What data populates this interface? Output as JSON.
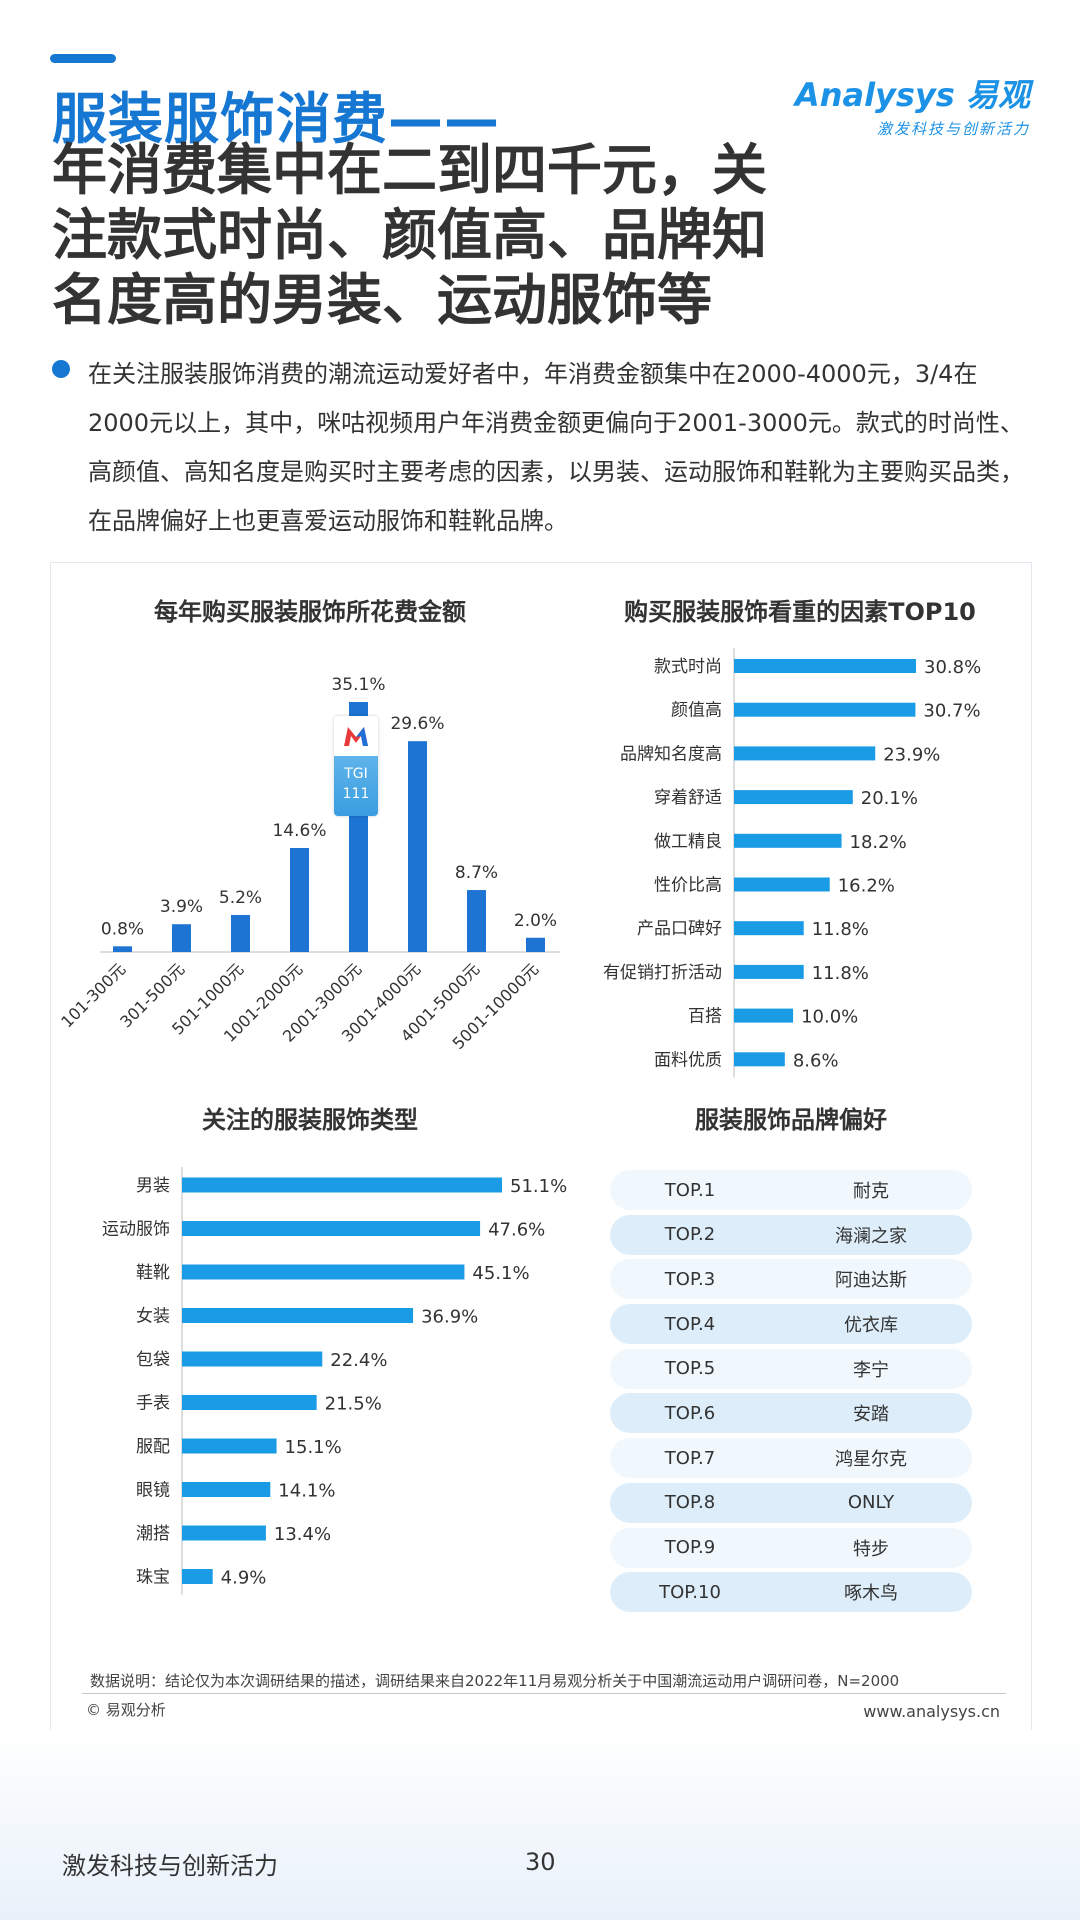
{
  "header": {
    "title_line1": "服装服饰消费——",
    "title_lines": [
      "年消费集中在二到四千元，关",
      "注款式时尚、颜值高、品牌知",
      "名度高的男装、运动服饰等"
    ]
  },
  "logo": {
    "brand": "Analysys 易观",
    "tagline": "激发科技与创新活力"
  },
  "summary": "在关注服装服饰消费的潮流运动爱好者中，年消费金额集中在2000-4000元，3/4在2000元以上，其中，咪咕视频用户年消费金额更偏向于2001-3000元。款式的时尚性、高颜值、高知名度是购买时主要考虑的因素，以男装、运动服饰和鞋靴为主要购买品类，在品牌偏好上也更喜爱运动服饰和鞋靴品牌。",
  "tgi_badge": {
    "label": "TGI",
    "value": "111"
  },
  "chart_data": [
    {
      "type": "bar",
      "title": "每年购买服装服饰所花费金额",
      "categories": [
        "101-300元",
        "301-500元",
        "501-1000元",
        "1001-2000元",
        "2001-3000元",
        "3001-4000元",
        "4001-5000元",
        "5001-10000元"
      ],
      "values": [
        0.8,
        3.9,
        5.2,
        14.6,
        35.1,
        29.6,
        8.7,
        2.0
      ],
      "labels": [
        "0.8%",
        "3.9%",
        "5.2%",
        "14.6%",
        "35.1%",
        "29.6%",
        "8.7%",
        "2.0%"
      ],
      "unit": "%",
      "ylim": [
        0,
        35.1
      ],
      "grid": false,
      "color": "#1d74d2"
    },
    {
      "type": "bar",
      "orientation": "horizontal",
      "title": "购买服装服饰看重的因素TOP10",
      "categories": [
        "款式时尚",
        "颜值高",
        "品牌知名度高",
        "穿着舒适",
        "做工精良",
        "性价比高",
        "产品口碑好",
        "有促销打折活动",
        "百搭",
        "面料优质"
      ],
      "values": [
        30.8,
        30.7,
        23.9,
        20.1,
        18.2,
        16.2,
        11.8,
        11.8,
        10.0,
        8.6
      ],
      "labels": [
        "30.8%",
        "30.7%",
        "23.9%",
        "20.1%",
        "18.2%",
        "16.2%",
        "11.8%",
        "11.8%",
        "10.0%",
        "8.6%"
      ],
      "unit": "%",
      "xlim": [
        0,
        30.8
      ],
      "grid": false,
      "color": "#1a9be6"
    },
    {
      "type": "bar",
      "orientation": "horizontal",
      "title": "关注的服装服饰类型",
      "categories": [
        "男装",
        "运动服饰",
        "鞋靴",
        "女装",
        "包袋",
        "手表",
        "服配",
        "眼镜",
        "潮搭",
        "珠宝"
      ],
      "values": [
        51.1,
        47.6,
        45.1,
        36.9,
        22.4,
        21.5,
        15.1,
        14.1,
        13.4,
        4.9
      ],
      "labels": [
        "51.1%",
        "47.6%",
        "45.1%",
        "36.9%",
        "22.4%",
        "21.5%",
        "15.1%",
        "14.1%",
        "13.4%",
        "4.9%"
      ],
      "unit": "%",
      "xlim": [
        0,
        51.1
      ],
      "grid": false,
      "color": "#1a9be6"
    },
    {
      "type": "table",
      "title": "服装服饰品牌偏好",
      "rows": [
        {
          "rank": "TOP.1",
          "brand": "耐克"
        },
        {
          "rank": "TOP.2",
          "brand": "海澜之家"
        },
        {
          "rank": "TOP.3",
          "brand": "阿迪达斯"
        },
        {
          "rank": "TOP.4",
          "brand": "优衣库"
        },
        {
          "rank": "TOP.5",
          "brand": "李宁"
        },
        {
          "rank": "TOP.6",
          "brand": "安踏"
        },
        {
          "rank": "TOP.7",
          "brand": "鸿星尔克"
        },
        {
          "rank": "TOP.8",
          "brand": "ONLY"
        },
        {
          "rank": "TOP.9",
          "brand": "特步"
        },
        {
          "rank": "TOP.10",
          "brand": "啄木鸟"
        }
      ]
    }
  ],
  "footer": {
    "note": "数据说明：结论仅为本次调研结果的描述，调研结果来自2022年11月易观分析关于中国潮流运动用户调研问卷，N=2000",
    "copyright": "© 易观分析",
    "website": "www.analysys.cn",
    "slogan": "激发科技与创新活力",
    "page_number": "30"
  }
}
